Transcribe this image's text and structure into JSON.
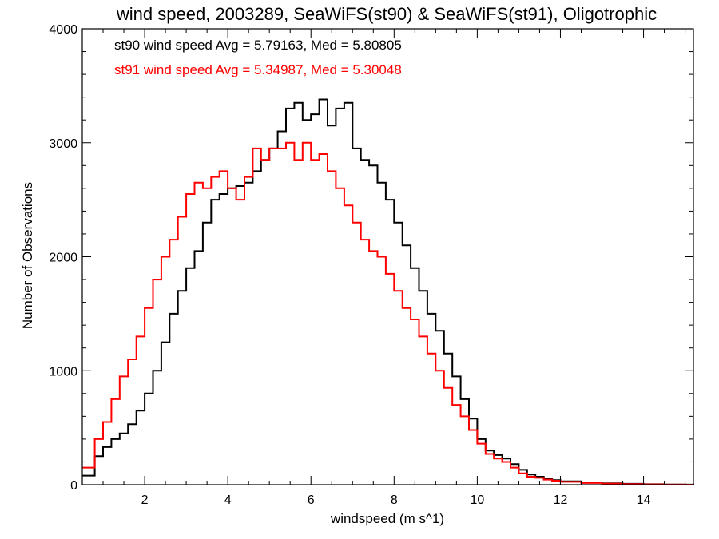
{
  "chart_data": {
    "type": "line",
    "title": "wind speed, 2003289, SeaWiFS(st90) & SeaWiFS(st91), Oligotrophic",
    "xlabel": "windspeed (m s^1)",
    "ylabel": "Number of Observations",
    "xlim": [
      0.5,
      15.2
    ],
    "ylim": [
      0,
      4000
    ],
    "xticks": [
      2,
      4,
      6,
      8,
      10,
      12,
      14
    ],
    "yticks": [
      0,
      1000,
      2000,
      3000,
      4000
    ],
    "grid": false,
    "legend_position": "top-left",
    "series": [
      {
        "name": "st90",
        "color": "#000000",
        "legend": "st90 wind speed Avg = 5.79163, Med = 5.80805",
        "x": [
          0.5,
          0.8,
          1.0,
          1.2,
          1.4,
          1.6,
          1.8,
          2.0,
          2.2,
          2.4,
          2.6,
          2.8,
          3.0,
          3.2,
          3.4,
          3.6,
          3.8,
          4.0,
          4.2,
          4.4,
          4.6,
          4.8,
          5.0,
          5.2,
          5.4,
          5.6,
          5.8,
          6.0,
          6.2,
          6.4,
          6.6,
          6.8,
          7.0,
          7.2,
          7.4,
          7.6,
          7.8,
          8.0,
          8.2,
          8.4,
          8.6,
          8.8,
          9.0,
          9.2,
          9.4,
          9.6,
          9.8,
          10.0,
          10.2,
          10.4,
          10.6,
          10.8,
          11.0,
          11.2,
          11.4,
          11.6,
          11.8,
          12.0,
          12.5,
          13.0,
          13.5,
          14.0,
          14.5,
          15.0,
          15.2
        ],
        "y": [
          80,
          250,
          330,
          400,
          450,
          530,
          650,
          800,
          1000,
          1250,
          1500,
          1700,
          1900,
          2050,
          2300,
          2500,
          2550,
          2600,
          2620,
          2650,
          2750,
          2850,
          2950,
          3100,
          3300,
          3350,
          3200,
          3250,
          3380,
          3150,
          3300,
          3350,
          2950,
          2850,
          2800,
          2650,
          2500,
          2300,
          2100,
          1900,
          1700,
          1500,
          1350,
          1150,
          950,
          750,
          580,
          400,
          300,
          260,
          230,
          180,
          130,
          90,
          70,
          50,
          40,
          30,
          20,
          12,
          8,
          4,
          2,
          1,
          0
        ]
      },
      {
        "name": "st91",
        "color": "#ff0000",
        "legend": "st91 wind speed Avg = 5.34987, Med = 5.30048",
        "x": [
          0.5,
          0.8,
          1.0,
          1.2,
          1.4,
          1.6,
          1.8,
          2.0,
          2.2,
          2.4,
          2.6,
          2.8,
          3.0,
          3.2,
          3.4,
          3.6,
          3.8,
          4.0,
          4.2,
          4.4,
          4.6,
          4.8,
          5.0,
          5.2,
          5.4,
          5.6,
          5.8,
          6.0,
          6.2,
          6.4,
          6.6,
          6.8,
          7.0,
          7.2,
          7.4,
          7.6,
          7.8,
          8.0,
          8.2,
          8.4,
          8.6,
          8.8,
          9.0,
          9.2,
          9.4,
          9.6,
          9.8,
          10.0,
          10.2,
          10.4,
          10.6,
          10.8,
          11.0,
          11.2,
          11.4,
          11.6,
          11.8,
          12.0,
          12.5,
          13.0,
          13.5,
          14.0,
          14.5,
          15.0,
          15.2
        ],
        "y": [
          150,
          400,
          550,
          750,
          950,
          1100,
          1300,
          1550,
          1800,
          2000,
          2150,
          2350,
          2550,
          2650,
          2600,
          2700,
          2750,
          2600,
          2500,
          2700,
          2950,
          2850,
          2950,
          2950,
          3000,
          2850,
          3000,
          2850,
          2900,
          2750,
          2600,
          2450,
          2300,
          2150,
          2050,
          2000,
          1850,
          1700,
          1550,
          1450,
          1300,
          1150,
          1000,
          850,
          700,
          600,
          480,
          360,
          270,
          230,
          200,
          150,
          100,
          70,
          60,
          45,
          35,
          25,
          15,
          10,
          5,
          3,
          1,
          0,
          0
        ]
      }
    ]
  }
}
